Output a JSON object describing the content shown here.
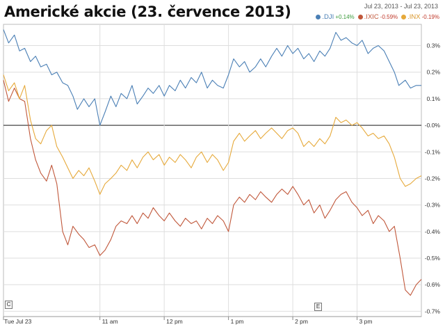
{
  "title": "Americké akcie (23. července 2013)",
  "date_range": {
    "start": "Jul 23, 2013",
    "sep": "-",
    "end": "Jul 23, 2013"
  },
  "markers": {
    "left": "C",
    "right": "E"
  },
  "colors": {
    "dji": "#4a7fb5",
    "ixic": "#c0573a",
    "inx": "#e6a93a",
    "green": "#3a9a3a",
    "red": "#c0392b"
  },
  "chart_data": {
    "type": "line",
    "x_unit": "time of day (hours)",
    "xlim": [
      9.5,
      16.0
    ],
    "ylim": [
      -0.72,
      0.38
    ],
    "x_ticks": [
      {
        "x": 9.5,
        "label": "Tue Jul 23"
      },
      {
        "x": 11.0,
        "label": "11 am"
      },
      {
        "x": 12.0,
        "label": "12 pm"
      },
      {
        "x": 13.0,
        "label": "1 pm"
      },
      {
        "x": 14.0,
        "label": "2 pm"
      },
      {
        "x": 15.0,
        "label": "3 pm"
      }
    ],
    "y_ticks": [
      {
        "y": 0.3,
        "label": "0.3%"
      },
      {
        "y": 0.2,
        "label": "0.2%"
      },
      {
        "y": 0.1,
        "label": "0.1%"
      },
      {
        "y": 0.0,
        "label": "-0.0%"
      },
      {
        "y": -0.1,
        "label": "-0.1%"
      },
      {
        "y": -0.2,
        "label": "-0.2%"
      },
      {
        "y": -0.3,
        "label": "-0.3%"
      },
      {
        "y": -0.4,
        "label": "-0.4%"
      },
      {
        "y": -0.5,
        "label": "-0.5%"
      },
      {
        "y": -0.6,
        "label": "-0.6%"
      },
      {
        "y": -0.7,
        "label": "-0.7%"
      }
    ],
    "series": [
      {
        "name": ".DJI",
        "change": "+0.14%",
        "color": "#4a7fb5",
        "change_color": "#3a9a3a",
        "points": [
          [
            9.5,
            0.36
          ],
          [
            9.58,
            0.31
          ],
          [
            9.67,
            0.34
          ],
          [
            9.75,
            0.28
          ],
          [
            9.83,
            0.29
          ],
          [
            9.92,
            0.24
          ],
          [
            10.0,
            0.26
          ],
          [
            10.08,
            0.22
          ],
          [
            10.17,
            0.23
          ],
          [
            10.25,
            0.19
          ],
          [
            10.33,
            0.2
          ],
          [
            10.42,
            0.16
          ],
          [
            10.5,
            0.15
          ],
          [
            10.58,
            0.11
          ],
          [
            10.65,
            0.06
          ],
          [
            10.75,
            0.1
          ],
          [
            10.83,
            0.07
          ],
          [
            10.92,
            0.1
          ],
          [
            11.0,
            0.0
          ],
          [
            11.08,
            0.05
          ],
          [
            11.17,
            0.11
          ],
          [
            11.25,
            0.07
          ],
          [
            11.33,
            0.12
          ],
          [
            11.42,
            0.1
          ],
          [
            11.5,
            0.15
          ],
          [
            11.58,
            0.08
          ],
          [
            11.67,
            0.11
          ],
          [
            11.75,
            0.14
          ],
          [
            11.83,
            0.12
          ],
          [
            11.92,
            0.15
          ],
          [
            12.0,
            0.11
          ],
          [
            12.08,
            0.15
          ],
          [
            12.17,
            0.13
          ],
          [
            12.25,
            0.17
          ],
          [
            12.33,
            0.14
          ],
          [
            12.42,
            0.18
          ],
          [
            12.5,
            0.16
          ],
          [
            12.58,
            0.2
          ],
          [
            12.67,
            0.14
          ],
          [
            12.75,
            0.17
          ],
          [
            12.83,
            0.15
          ],
          [
            12.92,
            0.14
          ],
          [
            13.0,
            0.19
          ],
          [
            13.08,
            0.25
          ],
          [
            13.17,
            0.22
          ],
          [
            13.25,
            0.24
          ],
          [
            13.33,
            0.2
          ],
          [
            13.42,
            0.22
          ],
          [
            13.5,
            0.25
          ],
          [
            13.58,
            0.22
          ],
          [
            13.67,
            0.26
          ],
          [
            13.75,
            0.29
          ],
          [
            13.83,
            0.26
          ],
          [
            13.92,
            0.3
          ],
          [
            14.0,
            0.27
          ],
          [
            14.08,
            0.29
          ],
          [
            14.17,
            0.25
          ],
          [
            14.25,
            0.27
          ],
          [
            14.33,
            0.24
          ],
          [
            14.42,
            0.28
          ],
          [
            14.5,
            0.26
          ],
          [
            14.58,
            0.29
          ],
          [
            14.67,
            0.35
          ],
          [
            14.75,
            0.32
          ],
          [
            14.83,
            0.33
          ],
          [
            14.92,
            0.31
          ],
          [
            15.0,
            0.3
          ],
          [
            15.08,
            0.32
          ],
          [
            15.17,
            0.27
          ],
          [
            15.25,
            0.29
          ],
          [
            15.33,
            0.3
          ],
          [
            15.42,
            0.28
          ],
          [
            15.5,
            0.24
          ],
          [
            15.58,
            0.2
          ],
          [
            15.65,
            0.15
          ],
          [
            15.75,
            0.17
          ],
          [
            15.83,
            0.14
          ],
          [
            15.92,
            0.15
          ],
          [
            16.0,
            0.15
          ]
        ]
      },
      {
        "name": ".IXIC",
        "change": "-0.59%",
        "color": "#c0573a",
        "change_color": "#c0392b",
        "points": [
          [
            9.5,
            0.17
          ],
          [
            9.58,
            0.09
          ],
          [
            9.67,
            0.14
          ],
          [
            9.75,
            0.1
          ],
          [
            9.83,
            0.09
          ],
          [
            9.92,
            -0.05
          ],
          [
            10.0,
            -0.13
          ],
          [
            10.08,
            -0.18
          ],
          [
            10.17,
            -0.21
          ],
          [
            10.25,
            -0.15
          ],
          [
            10.33,
            -0.22
          ],
          [
            10.42,
            -0.4
          ],
          [
            10.5,
            -0.45
          ],
          [
            10.58,
            -0.38
          ],
          [
            10.67,
            -0.41
          ],
          [
            10.75,
            -0.43
          ],
          [
            10.83,
            -0.46
          ],
          [
            10.92,
            -0.45
          ],
          [
            11.0,
            -0.49
          ],
          [
            11.08,
            -0.47
          ],
          [
            11.17,
            -0.43
          ],
          [
            11.25,
            -0.38
          ],
          [
            11.33,
            -0.36
          ],
          [
            11.42,
            -0.37
          ],
          [
            11.5,
            -0.34
          ],
          [
            11.58,
            -0.37
          ],
          [
            11.67,
            -0.33
          ],
          [
            11.75,
            -0.35
          ],
          [
            11.83,
            -0.31
          ],
          [
            11.92,
            -0.34
          ],
          [
            12.0,
            -0.36
          ],
          [
            12.08,
            -0.33
          ],
          [
            12.17,
            -0.36
          ],
          [
            12.25,
            -0.38
          ],
          [
            12.33,
            -0.35
          ],
          [
            12.42,
            -0.37
          ],
          [
            12.5,
            -0.36
          ],
          [
            12.58,
            -0.39
          ],
          [
            12.67,
            -0.35
          ],
          [
            12.75,
            -0.37
          ],
          [
            12.83,
            -0.34
          ],
          [
            12.92,
            -0.36
          ],
          [
            13.0,
            -0.4
          ],
          [
            13.08,
            -0.3
          ],
          [
            13.17,
            -0.27
          ],
          [
            13.25,
            -0.29
          ],
          [
            13.33,
            -0.26
          ],
          [
            13.42,
            -0.28
          ],
          [
            13.5,
            -0.25
          ],
          [
            13.58,
            -0.27
          ],
          [
            13.67,
            -0.29
          ],
          [
            13.75,
            -0.26
          ],
          [
            13.83,
            -0.24
          ],
          [
            13.92,
            -0.26
          ],
          [
            14.0,
            -0.23
          ],
          [
            14.08,
            -0.26
          ],
          [
            14.17,
            -0.3
          ],
          [
            14.25,
            -0.28
          ],
          [
            14.33,
            -0.33
          ],
          [
            14.42,
            -0.3
          ],
          [
            14.5,
            -0.35
          ],
          [
            14.58,
            -0.32
          ],
          [
            14.67,
            -0.28
          ],
          [
            14.75,
            -0.26
          ],
          [
            14.83,
            -0.25
          ],
          [
            14.92,
            -0.29
          ],
          [
            15.0,
            -0.31
          ],
          [
            15.08,
            -0.34
          ],
          [
            15.17,
            -0.32
          ],
          [
            15.25,
            -0.37
          ],
          [
            15.33,
            -0.34
          ],
          [
            15.42,
            -0.36
          ],
          [
            15.5,
            -0.4
          ],
          [
            15.58,
            -0.38
          ],
          [
            15.67,
            -0.5
          ],
          [
            15.75,
            -0.62
          ],
          [
            15.83,
            -0.64
          ],
          [
            15.92,
            -0.6
          ],
          [
            16.0,
            -0.58
          ]
        ]
      },
      {
        "name": ".INX",
        "change": "-0.19%",
        "color": "#e6a93a",
        "change_color": "#c0392b",
        "points": [
          [
            9.5,
            0.19
          ],
          [
            9.58,
            0.13
          ],
          [
            9.67,
            0.16
          ],
          [
            9.75,
            0.1
          ],
          [
            9.83,
            0.15
          ],
          [
            9.92,
            0.02
          ],
          [
            10.0,
            -0.05
          ],
          [
            10.08,
            -0.07
          ],
          [
            10.17,
            -0.02
          ],
          [
            10.25,
            0.0
          ],
          [
            10.33,
            -0.08
          ],
          [
            10.42,
            -0.12
          ],
          [
            10.5,
            -0.16
          ],
          [
            10.58,
            -0.2
          ],
          [
            10.67,
            -0.17
          ],
          [
            10.75,
            -0.19
          ],
          [
            10.83,
            -0.16
          ],
          [
            10.92,
            -0.21
          ],
          [
            11.0,
            -0.26
          ],
          [
            11.08,
            -0.22
          ],
          [
            11.17,
            -0.2
          ],
          [
            11.25,
            -0.18
          ],
          [
            11.33,
            -0.15
          ],
          [
            11.42,
            -0.17
          ],
          [
            11.5,
            -0.13
          ],
          [
            11.58,
            -0.16
          ],
          [
            11.67,
            -0.12
          ],
          [
            11.75,
            -0.1
          ],
          [
            11.83,
            -0.13
          ],
          [
            11.92,
            -0.11
          ],
          [
            12.0,
            -0.15
          ],
          [
            12.08,
            -0.12
          ],
          [
            12.17,
            -0.14
          ],
          [
            12.25,
            -0.11
          ],
          [
            12.33,
            -0.13
          ],
          [
            12.42,
            -0.16
          ],
          [
            12.5,
            -0.12
          ],
          [
            12.58,
            -0.1
          ],
          [
            12.67,
            -0.14
          ],
          [
            12.75,
            -0.11
          ],
          [
            12.83,
            -0.13
          ],
          [
            12.92,
            -0.17
          ],
          [
            13.0,
            -0.14
          ],
          [
            13.08,
            -0.06
          ],
          [
            13.17,
            -0.03
          ],
          [
            13.25,
            -0.06
          ],
          [
            13.33,
            -0.04
          ],
          [
            13.42,
            -0.02
          ],
          [
            13.5,
            -0.05
          ],
          [
            13.58,
            -0.03
          ],
          [
            13.67,
            -0.01
          ],
          [
            13.75,
            -0.03
          ],
          [
            13.83,
            -0.05
          ],
          [
            13.92,
            -0.02
          ],
          [
            14.0,
            -0.01
          ],
          [
            14.08,
            -0.03
          ],
          [
            14.17,
            -0.08
          ],
          [
            14.25,
            -0.06
          ],
          [
            14.33,
            -0.08
          ],
          [
            14.42,
            -0.05
          ],
          [
            14.5,
            -0.07
          ],
          [
            14.58,
            -0.04
          ],
          [
            14.67,
            0.03
          ],
          [
            14.75,
            0.01
          ],
          [
            14.83,
            0.02
          ],
          [
            14.92,
            0.0
          ],
          [
            15.0,
            0.01
          ],
          [
            15.08,
            -0.01
          ],
          [
            15.17,
            -0.04
          ],
          [
            15.25,
            -0.03
          ],
          [
            15.33,
            -0.05
          ],
          [
            15.42,
            -0.04
          ],
          [
            15.5,
            -0.07
          ],
          [
            15.58,
            -0.12
          ],
          [
            15.67,
            -0.2
          ],
          [
            15.75,
            -0.23
          ],
          [
            15.83,
            -0.22
          ],
          [
            15.92,
            -0.2
          ],
          [
            16.0,
            -0.19
          ]
        ]
      }
    ],
    "grid": true,
    "legend": "top-right"
  }
}
